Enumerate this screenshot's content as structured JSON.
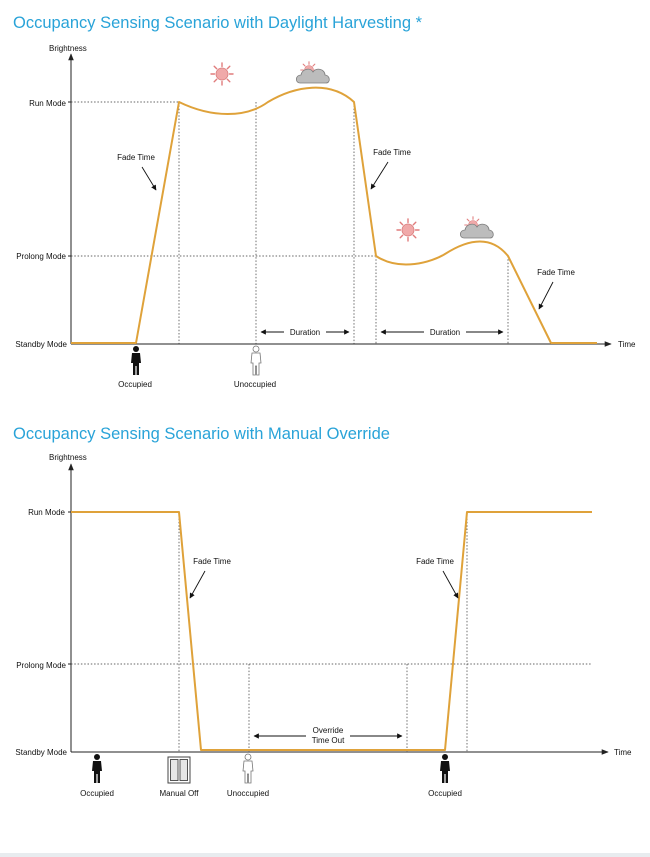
{
  "diagram1": {
    "title": "Occupancy Sensing Scenario with Daylight Harvesting *",
    "y_axis_label": "Brightness",
    "x_axis_label": "Time",
    "levels": [
      "Run Mode",
      "Prolong Mode",
      "Standby Mode"
    ],
    "fade_labels": [
      "Fade Time",
      "Fade Time",
      "Fade Time"
    ],
    "duration_labels": [
      "Duration",
      "Duration"
    ],
    "events": [
      "Occupied",
      "Unoccupied"
    ],
    "icons": [
      "sun-icon",
      "sun-cloud-icon"
    ]
  },
  "diagram2": {
    "title": "Occupancy Sensing Scenario with Manual Override",
    "y_axis_label": "Brightness",
    "x_axis_label": "Time",
    "levels": [
      "Run Mode",
      "Prolong Mode",
      "Standby Mode"
    ],
    "fade_labels": [
      "Fade Time",
      "Fade Time"
    ],
    "override_label_line1": "Override",
    "override_label_line2": "Time Out",
    "events": [
      "Occupied",
      "Manual Off",
      "Unoccupied",
      "Occupied"
    ],
    "icons": [
      "person-icon",
      "switch-icon"
    ]
  },
  "colors": {
    "title": "#29a3d8",
    "brightness_curve": "#dfa23a",
    "axis": "#222222",
    "guide": "#333333",
    "sun": "#e79a9a",
    "cloud": "#b7b7b7"
  }
}
